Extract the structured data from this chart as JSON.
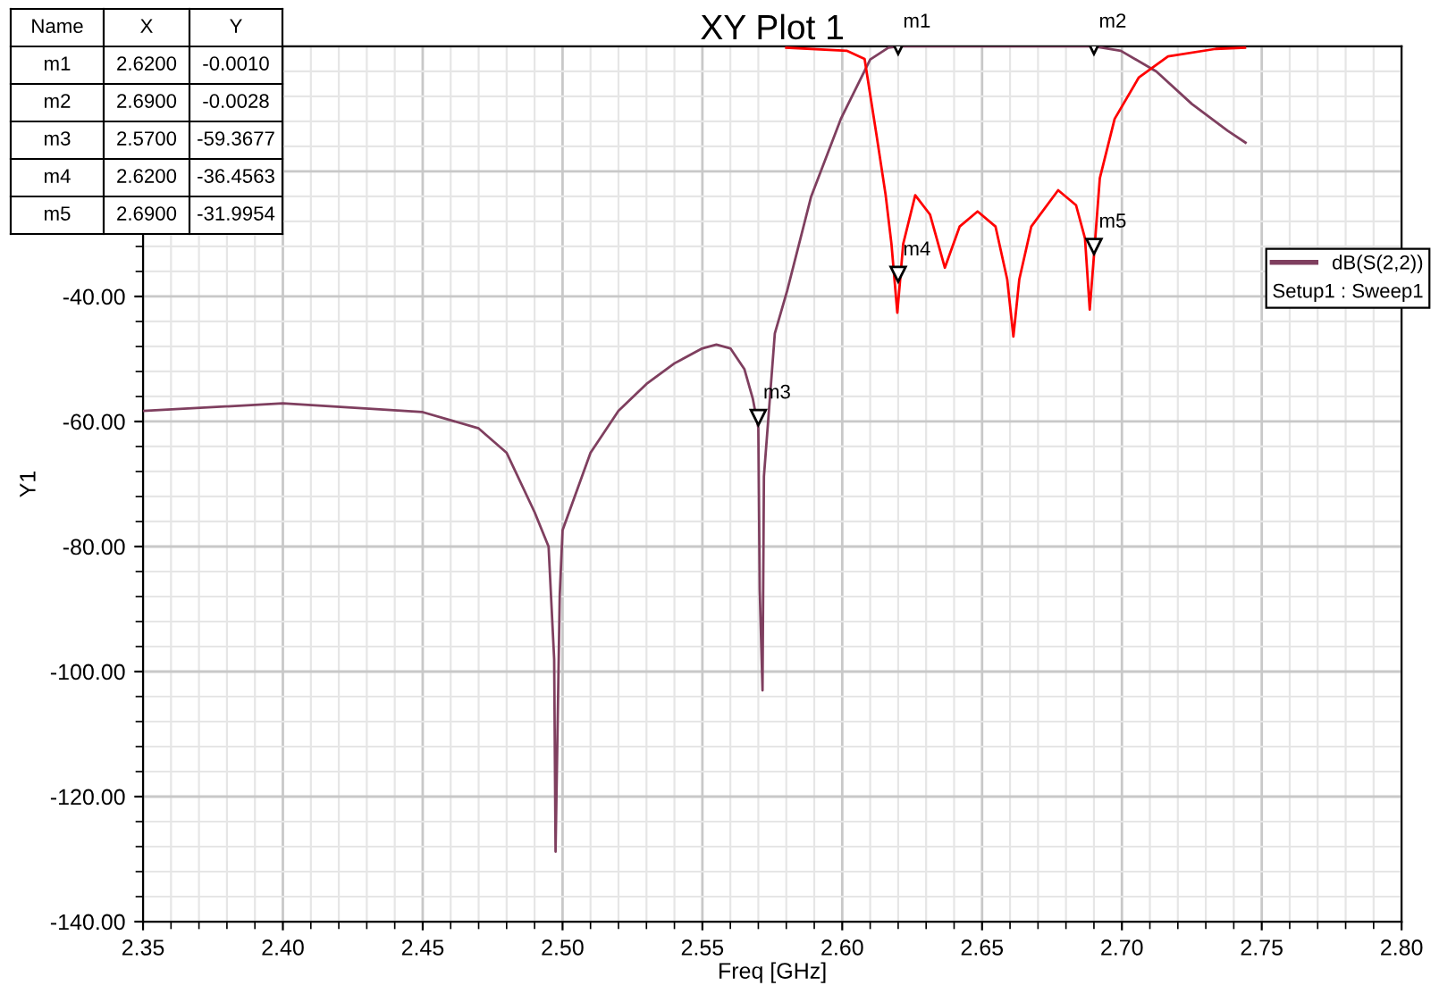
{
  "chart_data": {
    "type": "line",
    "title": "XY Plot 1",
    "xlabel": "Freq [GHz]",
    "ylabel": "Y1",
    "legend_title": "Setup1 : Sweep1",
    "legend": "top right",
    "grid": true,
    "xlim": [
      2.35,
      2.8
    ],
    "xticks": [
      {
        "value": 2.35,
        "label": "2.35"
      },
      {
        "value": 2.4,
        "label": "2.40"
      },
      {
        "value": 2.45,
        "label": "2.45"
      },
      {
        "value": 2.5,
        "label": "2.50"
      },
      {
        "value": 2.55,
        "label": "2.55"
      },
      {
        "value": 2.6,
        "label": "2.60"
      },
      {
        "value": 2.65,
        "label": "2.65"
      },
      {
        "value": 2.7,
        "label": "2.70"
      },
      {
        "value": 2.75,
        "label": "2.75"
      },
      {
        "value": 2.8,
        "label": "2.80"
      }
    ],
    "ylim": [
      -140,
      0
    ],
    "yticks": [
      {
        "value": -140,
        "label": "-140.00"
      },
      {
        "value": -120,
        "label": "-120.00"
      },
      {
        "value": -100,
        "label": "-100.00"
      },
      {
        "value": -80,
        "label": "-80.00"
      },
      {
        "value": -60,
        "label": "-60.00"
      },
      {
        "value": -40,
        "label": "-40.00"
      },
      {
        "value": -20,
        "label": null
      },
      {
        "value": 0,
        "label": null
      }
    ],
    "series": [
      {
        "name": "dB(S(2,2))",
        "color": "#7f3f5f",
        "x": [
          2.35,
          2.4,
          2.45,
          2.47,
          2.48,
          2.49,
          2.495,
          2.497,
          2.4975,
          2.499,
          2.5,
          2.51,
          2.52,
          2.53,
          2.54,
          2.55,
          2.555,
          2.56,
          2.565,
          2.568,
          2.57,
          2.5705,
          2.5715,
          2.572,
          2.5759,
          2.5803,
          2.5889,
          2.5995,
          2.61,
          2.6165,
          2.62,
          2.65,
          2.69,
          2.6996,
          2.7123,
          2.725,
          2.7378,
          2.7442
        ],
        "values": [
          -58.3,
          -57.1,
          -58.5,
          -61.1,
          -65,
          -74.5,
          -80,
          -98,
          -128.8,
          -87.7,
          -77.4,
          -65,
          -58.3,
          -54,
          -50.7,
          -48.3,
          -47.7,
          -48.3,
          -51.6,
          -56.3,
          -61,
          -86.9,
          -103,
          -68.8,
          -45.9,
          -39.1,
          -24,
          -11.6,
          -2.1,
          -0.2,
          0,
          0,
          0,
          -0.7,
          -4,
          -9.2,
          -13.5,
          -15.4
        ]
      },
      {
        "color": "#ff0000",
        "x": [
          2.58,
          2.6016,
          2.608,
          2.6123,
          2.6155,
          2.6176,
          2.6197,
          2.6218,
          2.6261,
          2.6314,
          2.6367,
          2.642,
          2.6484,
          2.6548,
          2.659,
          2.6612,
          2.6633,
          2.6676,
          2.6772,
          2.6836,
          2.6868,
          2.6885,
          2.69,
          2.6921,
          2.6974,
          2.706,
          2.7165,
          2.7335,
          2.744
        ],
        "values": [
          -0.2,
          -0.7,
          -2,
          -14.3,
          -23.7,
          -31.6,
          -42.6,
          -31.6,
          -23.8,
          -26.9,
          -35.4,
          -28.8,
          -26.4,
          -28.8,
          -37.3,
          -46.4,
          -37.3,
          -28.8,
          -23,
          -25.4,
          -30.7,
          -42.1,
          -33.5,
          -21.1,
          -11.6,
          -5,
          -1.6,
          -0.4,
          -0.2
        ]
      }
    ],
    "annotations": [
      {
        "text": "m1",
        "x": 2.62,
        "y": -0.001
      },
      {
        "text": "m2",
        "x": 2.69,
        "y": -0.0028
      },
      {
        "text": "m3",
        "x": 2.57,
        "y": -59.3677
      },
      {
        "text": "m4",
        "x": 2.62,
        "y": -36.4563
      },
      {
        "text": "m5",
        "x": 2.69,
        "y": -31.9954
      },
      "Name",
      "X",
      "Y",
      "m1",
      "2.6200",
      "-0.0010",
      "m2",
      "2.6900",
      "-0.0028",
      "m3",
      "2.5700",
      "-59.3677",
      "m4",
      "2.6200",
      "-36.4563",
      "m5",
      "2.6900",
      "-31.9954"
    ]
  }
}
